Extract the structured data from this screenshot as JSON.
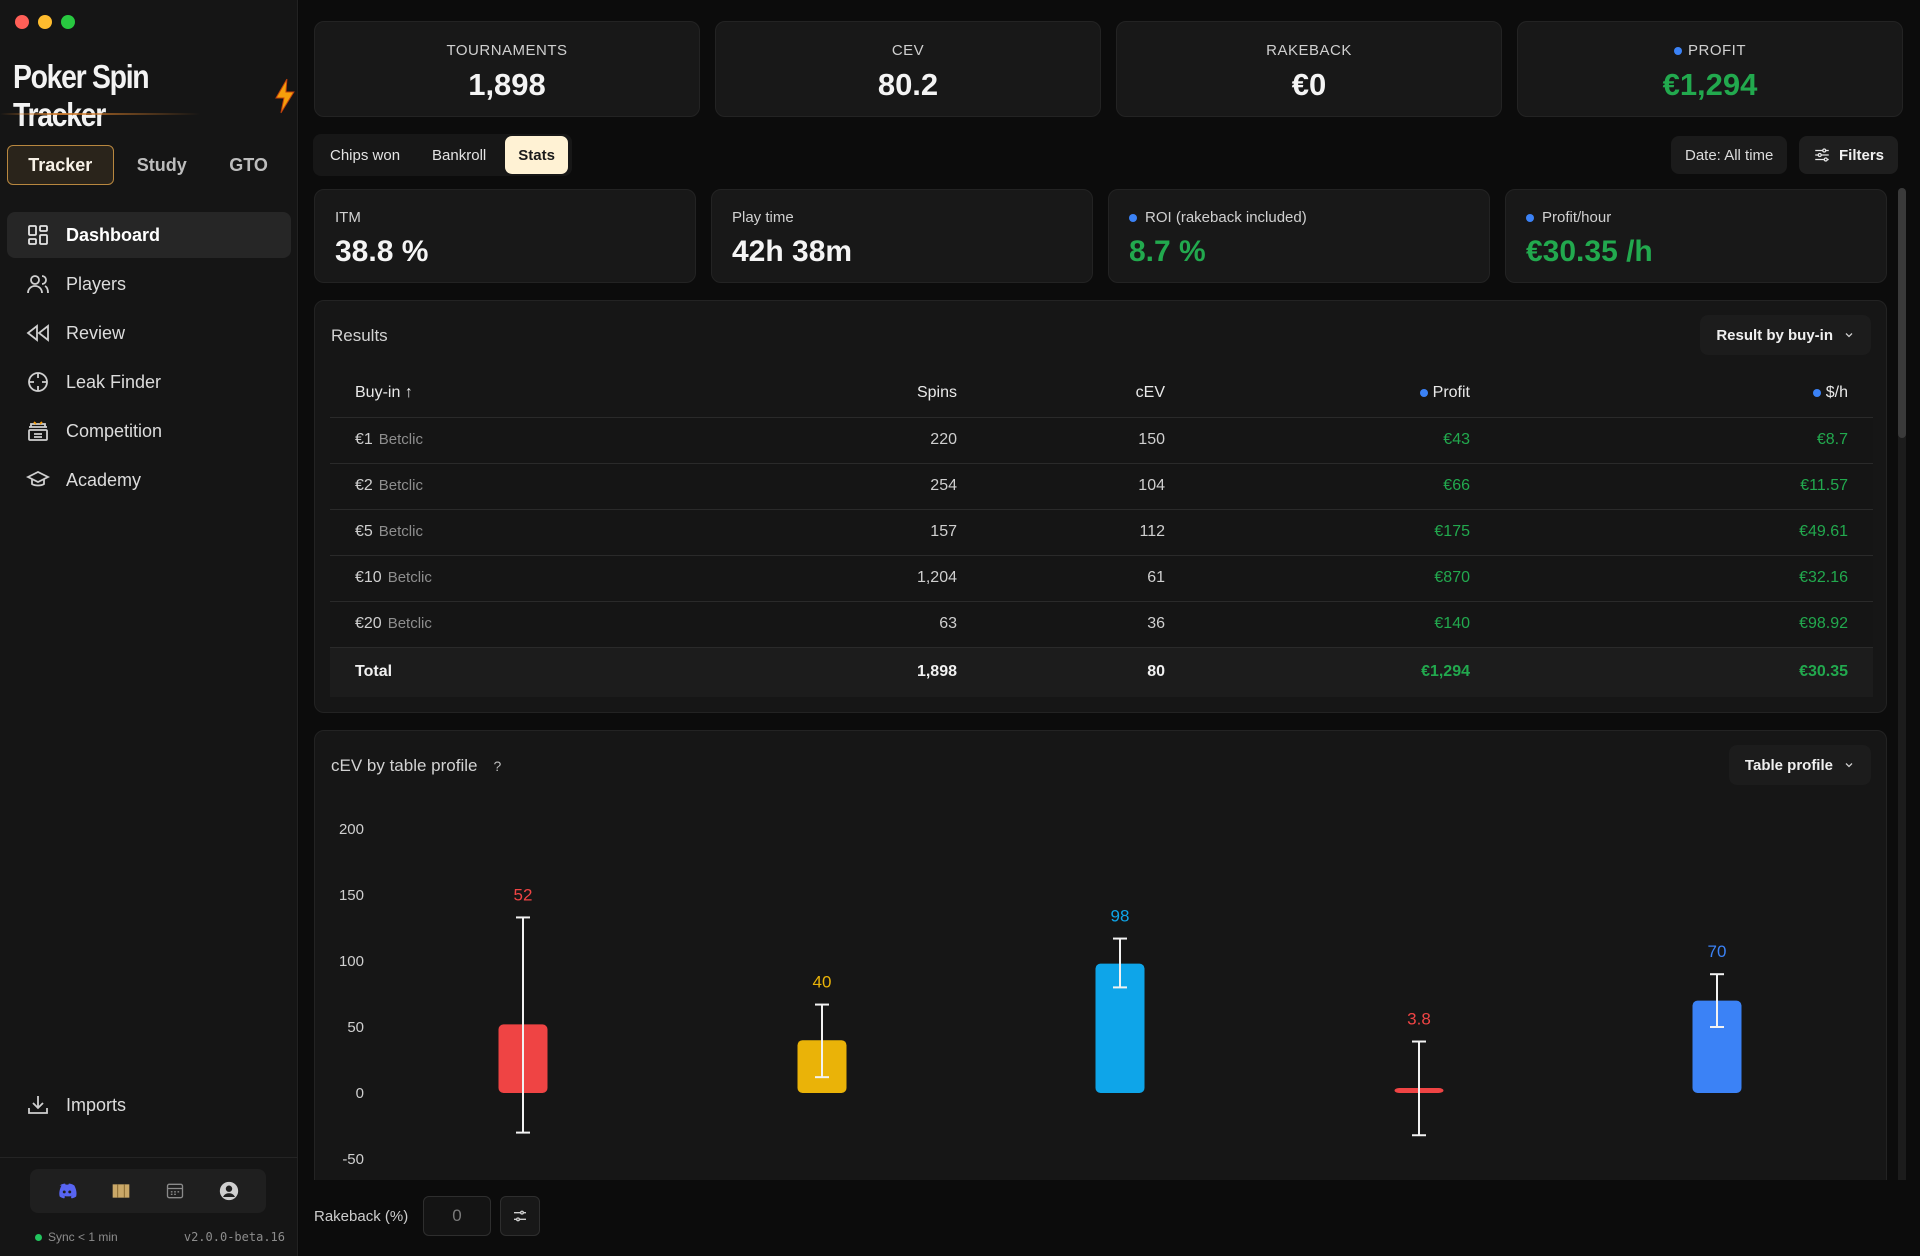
{
  "colors": {
    "accent": "#b8873f",
    "profit_green": "#22a94e",
    "blue": "#3b82f6"
  },
  "sidebar": {
    "brand": "Poker Spin Tracker",
    "tabs": [
      {
        "label": "Tracker"
      },
      {
        "label": "Study"
      },
      {
        "label": "GTO"
      }
    ],
    "items": [
      {
        "label": "Dashboard",
        "icon": "dashboard-icon"
      },
      {
        "label": "Players",
        "icon": "users-icon"
      },
      {
        "label": "Review",
        "icon": "rewind-icon"
      },
      {
        "label": "Leak Finder",
        "icon": "crosshair-icon"
      },
      {
        "label": "Competition",
        "icon": "podium-icon"
      },
      {
        "label": "Academy",
        "icon": "graduation-cap-icon"
      }
    ],
    "imports_label": "Imports",
    "sync": "Sync < 1 min",
    "version": "v2.0.0-beta.16"
  },
  "kpis": [
    {
      "label": "TOURNAMENTS",
      "value": "1,898"
    },
    {
      "label": "CEV",
      "value": "80.2"
    },
    {
      "label": "RAKEBACK",
      "value": "€0"
    },
    {
      "label": "PROFIT",
      "value": "€1,294"
    }
  ],
  "subtabs": [
    {
      "label": "Chips won"
    },
    {
      "label": "Bankroll"
    },
    {
      "label": "Stats"
    }
  ],
  "date_filter": "Date: All time",
  "filters_label": "Filters",
  "stats": [
    {
      "label": "ITM",
      "value": "38.8 %"
    },
    {
      "label": "Play time",
      "value": "42h 38m"
    },
    {
      "label": "ROI (rakeback included)",
      "value": "8.7 %"
    },
    {
      "label": "Profit/hour",
      "value": "€30.35 /h"
    }
  ],
  "results": {
    "title": "Results",
    "dropdown": "Result by buy-in",
    "headers": {
      "buyin": "Buy-in",
      "spins": "Spins",
      "cev": "cEV",
      "profit": "Profit",
      "perhour": "$/h"
    },
    "rows": [
      {
        "buyin": "€1",
        "site": "Betclic",
        "spins": "220",
        "cev": "150",
        "profit": "€43",
        "perhour": "€8.7"
      },
      {
        "buyin": "€2",
        "site": "Betclic",
        "spins": "254",
        "cev": "104",
        "profit": "€66",
        "perhour": "€11.57"
      },
      {
        "buyin": "€5",
        "site": "Betclic",
        "spins": "157",
        "cev": "112",
        "profit": "€175",
        "perhour": "€49.61"
      },
      {
        "buyin": "€10",
        "site": "Betclic",
        "spins": "1,204",
        "cev": "61",
        "profit": "€870",
        "perhour": "€32.16"
      },
      {
        "buyin": "€20",
        "site": "Betclic",
        "spins": "63",
        "cev": "36",
        "profit": "€140",
        "perhour": "€98.92"
      }
    ],
    "total": {
      "label": "Total",
      "spins": "1,898",
      "cev": "80",
      "profit": "€1,294",
      "perhour": "€30.35"
    }
  },
  "cev_section": {
    "title": "cEV by table profile",
    "help": "?",
    "dropdown": "Table profile"
  },
  "chart_data": {
    "type": "bar",
    "categories": [
      "",
      "",
      "",
      "",
      ""
    ],
    "values": [
      52,
      40,
      98,
      3.8,
      70
    ],
    "labels": [
      "52",
      "40",
      "98",
      "3.8",
      "70"
    ],
    "error_low": [
      -30,
      12,
      80,
      -32,
      50
    ],
    "error_high": [
      133,
      67,
      117,
      39,
      90
    ],
    "colors": [
      "#ef4444",
      "#eab308",
      "#0ea5e9",
      "#ef4444",
      "#3b82f6"
    ],
    "yticks": [
      "200",
      "150",
      "100",
      "50",
      "0",
      "-50"
    ],
    "ylim": [
      -50,
      200
    ],
    "grid": false
  },
  "bottom": {
    "rakeback_label": "Rakeback (%)",
    "rakeback_value": "0"
  }
}
